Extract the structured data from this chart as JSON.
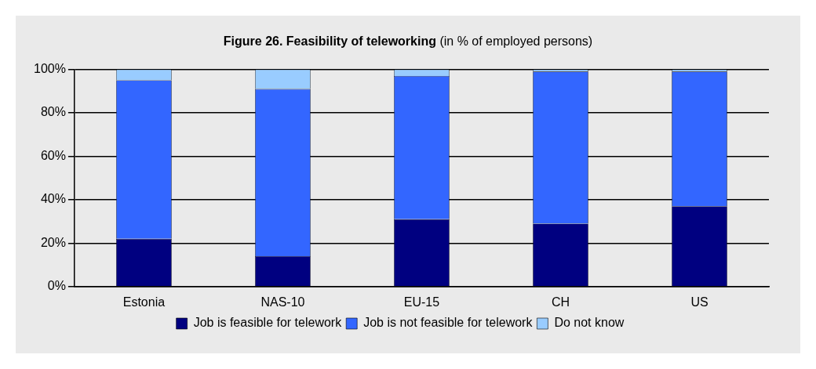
{
  "chart_data": {
    "type": "bar",
    "title": "Figure 26. Feasibility of teleworking",
    "subtitle": "(in % of employed persons)",
    "categories": [
      "Estonia",
      "NAS-10",
      "EU-15",
      "CH",
      "US"
    ],
    "series": [
      {
        "name": "Job is feasible for telework",
        "color": "#000080",
        "values": [
          22,
          14,
          31,
          29,
          37
        ]
      },
      {
        "name": "Job is not feasible for telework",
        "color": "#3366ff",
        "values": [
          73,
          77,
          66,
          70,
          62
        ]
      },
      {
        "name": "Do not know",
        "color": "#99ccff",
        "values": [
          5,
          9,
          3,
          1,
          1
        ]
      }
    ],
    "stacked": true,
    "ylim": [
      0,
      100
    ],
    "yticks": [
      {
        "value": 0,
        "label": "0%"
      },
      {
        "value": 20,
        "label": "20%"
      },
      {
        "value": 40,
        "label": "40%"
      },
      {
        "value": 60,
        "label": "60%"
      },
      {
        "value": 80,
        "label": "80%"
      },
      {
        "value": 100,
        "label": "100%"
      }
    ],
    "grid": "y",
    "legend": "bottom"
  }
}
